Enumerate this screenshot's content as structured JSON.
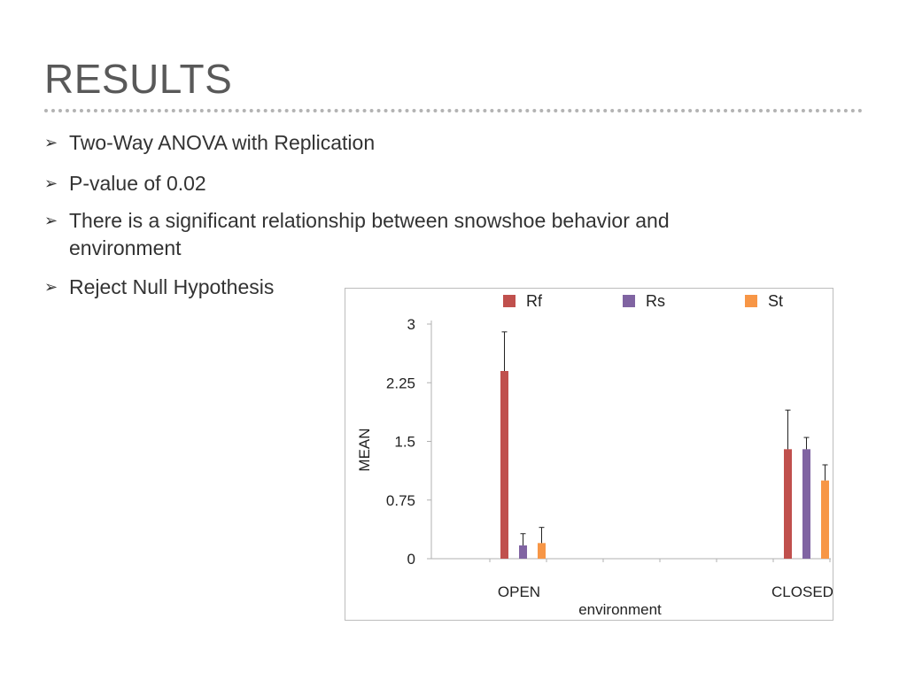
{
  "slide": {
    "title": "RESULTS",
    "bullet_glyph": "➢",
    "bullets": [
      "Two-Way ANOVA with Replication",
      "P-value of 0.02",
      "There is a significant relationship between snowshoe behavior and environment",
      "Reject Null Hypothesis"
    ]
  },
  "chart_data": {
    "type": "bar",
    "categories": [
      "OPEN",
      "CLOSED"
    ],
    "xlabel": "environment",
    "ylabel": "MEAN",
    "ylim": [
      0,
      3
    ],
    "yticks": [
      "0",
      "0.75",
      "1.5",
      "2.25",
      "3"
    ],
    "legend_position": "top",
    "grid": false,
    "error_bars": true,
    "series": [
      {
        "name": "Rf",
        "color": "#c0504d",
        "values": [
          2.4,
          1.4
        ],
        "errors": [
          0.5,
          0.5
        ]
      },
      {
        "name": "Rs",
        "color": "#8064a2",
        "values": [
          0.17,
          1.4
        ],
        "errors": [
          0.15,
          0.15
        ]
      },
      {
        "name": "St",
        "color": "#f79646",
        "values": [
          0.2,
          1.0
        ],
        "errors": [
          0.2,
          0.2
        ]
      }
    ]
  }
}
